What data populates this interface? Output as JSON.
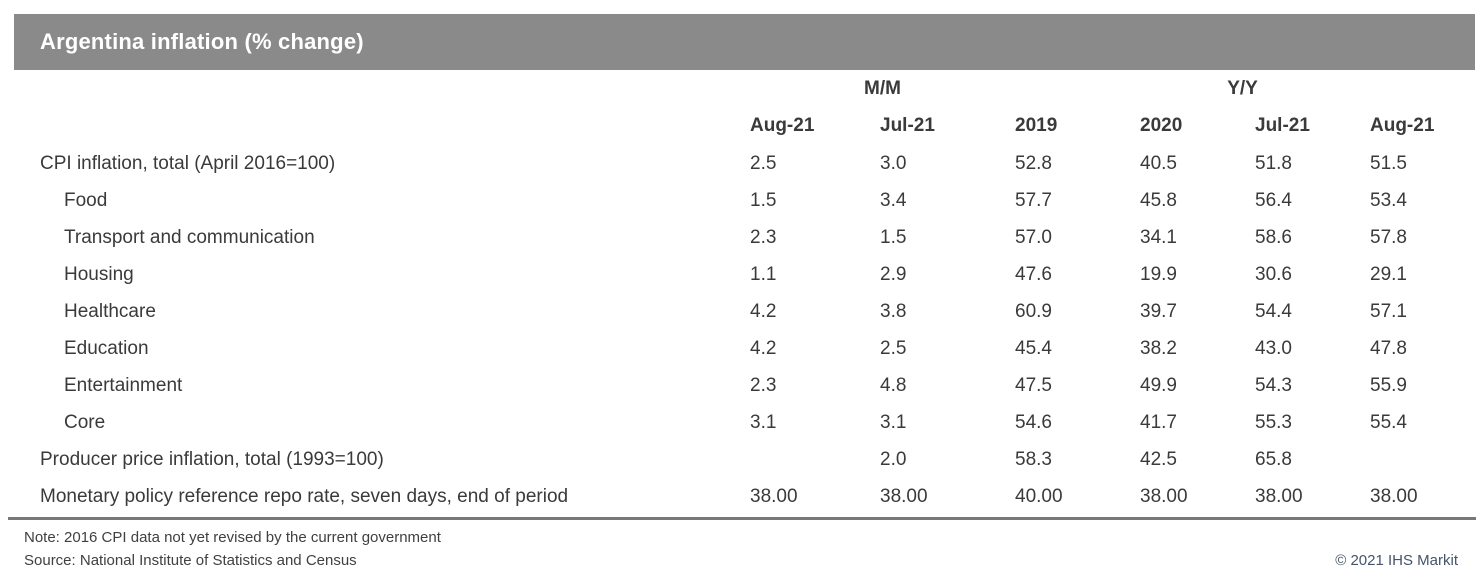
{
  "header": {
    "title": "Argentina inflation (% change)"
  },
  "chart_data": {
    "type": "table",
    "title": "Argentina inflation (% change)",
    "column_groups": [
      {
        "label": "M/M",
        "span": 2
      },
      {
        "label": "Y/Y",
        "span": 4
      }
    ],
    "columns": [
      "Aug-21",
      "Jul-21",
      "2019",
      "2020",
      "Jul-21",
      "Aug-21"
    ],
    "rows": [
      {
        "label": "CPI inflation, total (April 2016=100)",
        "indent": false,
        "values": [
          "2.5",
          "3.0",
          "52.8",
          "40.5",
          "51.8",
          "51.5"
        ]
      },
      {
        "label": "Food",
        "indent": true,
        "values": [
          "1.5",
          "3.4",
          "57.7",
          "45.8",
          "56.4",
          "53.4"
        ]
      },
      {
        "label": "Transport and communication",
        "indent": true,
        "values": [
          "2.3",
          "1.5",
          "57.0",
          "34.1",
          "58.6",
          "57.8"
        ]
      },
      {
        "label": "Housing",
        "indent": true,
        "values": [
          "1.1",
          "2.9",
          "47.6",
          "19.9",
          "30.6",
          "29.1"
        ]
      },
      {
        "label": "Healthcare",
        "indent": true,
        "values": [
          "4.2",
          "3.8",
          "60.9",
          "39.7",
          "54.4",
          "57.1"
        ]
      },
      {
        "label": "Education",
        "indent": true,
        "values": [
          "4.2",
          "2.5",
          "45.4",
          "38.2",
          "43.0",
          "47.8"
        ]
      },
      {
        "label": "Entertainment",
        "indent": true,
        "values": [
          "2.3",
          "4.8",
          "47.5",
          "49.9",
          "54.3",
          "55.9"
        ]
      },
      {
        "label": "Core",
        "indent": true,
        "values": [
          "3.1",
          "3.1",
          "54.6",
          "41.7",
          "55.3",
          "55.4"
        ]
      },
      {
        "label": "Producer price inflation, total (1993=100)",
        "indent": false,
        "values": [
          "",
          "2.0",
          "58.3",
          "42.5",
          "65.8",
          ""
        ]
      },
      {
        "label": "Monetary policy reference repo rate, seven days, end of period",
        "indent": false,
        "values": [
          "38.00",
          "38.00",
          "40.00",
          "38.00",
          "38.00",
          "38.00"
        ]
      }
    ]
  },
  "footer": {
    "note": "Note: 2016 CPI data not yet revised by the current government",
    "source": "Source: National Institute of Statistics and Census",
    "copyright": "© 2021 IHS Markit"
  },
  "colors": {
    "title_bar_bg": "#8a8a8a",
    "title_text": "#ffffff",
    "body_text": "#3a3a3a",
    "divider": "#787878",
    "copyright_text": "#44546a"
  }
}
